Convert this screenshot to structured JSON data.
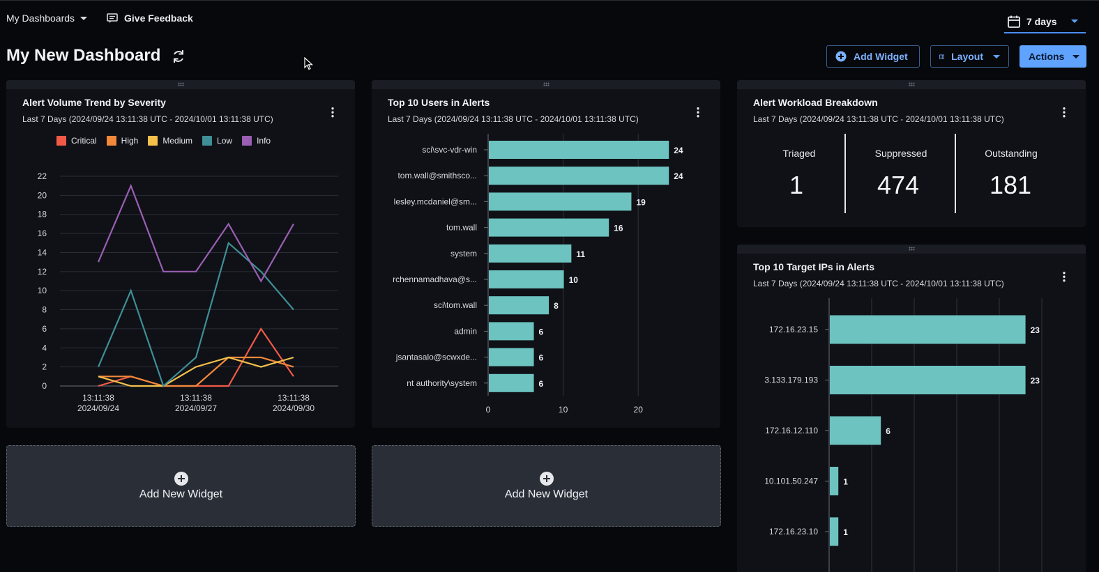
{
  "topbar": {
    "dashboards_label": "My Dashboards",
    "feedback_label": "Give Feedback",
    "date_range": "7 days"
  },
  "header": {
    "title": "My New Dashboard",
    "add_widget_label": "Add Widget",
    "layout_label": "Layout",
    "actions_label": "Actions"
  },
  "colors": {
    "accent": "#5fa3ff",
    "bar": "#6cc3bf",
    "critical": "#f25a47",
    "high": "#f2883a",
    "medium": "#f5c04a",
    "low": "#3f8f96",
    "info": "#9a5fb3"
  },
  "widgets": {
    "alert_volume": {
      "title": "Alert Volume Trend by Severity",
      "subtitle": "Last 7 Days (2024/09/24 13:11:38 UTC - 2024/10/01 13:11:38 UTC)"
    },
    "top_users": {
      "title": "Top 10 Users in Alerts",
      "subtitle": "Last 7 Days (2024/09/24 13:11:38 UTC - 2024/10/01 13:11:38 UTC)"
    },
    "workload": {
      "title": "Alert Workload Breakdown",
      "subtitle": "Last 7 Days (2024/09/24 13:11:38 UTC - 2024/10/01 13:11:38 UTC)",
      "triaged_label": "Triaged",
      "triaged_value": "1",
      "suppressed_label": "Suppressed",
      "suppressed_value": "474",
      "outstanding_label": "Outstanding",
      "outstanding_value": "181"
    },
    "top_ips": {
      "title": "Top 10 Target IPs in Alerts",
      "subtitle": "Last 7 Days (2024/09/24 13:11:38 UTC - 2024/10/01 13:11:38 UTC)"
    },
    "add_new_widget_label": "Add New Widget"
  },
  "chart_data": [
    {
      "type": "line",
      "title": "Alert Volume Trend by Severity",
      "x": [
        "2024/09/24",
        "2024/09/25",
        "2024/09/26",
        "2024/09/27",
        "2024/09/28",
        "2024/09/29",
        "2024/09/30"
      ],
      "x_ticks": [
        {
          "index": 0,
          "time": "13:11:38",
          "date": "2024/09/24"
        },
        {
          "index": 3,
          "time": "13:11:38",
          "date": "2024/09/27"
        },
        {
          "index": 6,
          "time": "13:11:38",
          "date": "2024/09/30"
        }
      ],
      "yticks": [
        0,
        2,
        4,
        6,
        8,
        10,
        12,
        14,
        16,
        18,
        20,
        22
      ],
      "ylim": [
        0,
        22
      ],
      "grid": true,
      "legend": "top",
      "series": [
        {
          "name": "Critical",
          "color": "#f25a47",
          "values": [
            0,
            1,
            0,
            0,
            0,
            6,
            1
          ]
        },
        {
          "name": "High",
          "color": "#f2883a",
          "values": [
            1,
            1,
            0,
            0,
            3,
            3,
            2
          ]
        },
        {
          "name": "Medium",
          "color": "#f5c04a",
          "values": [
            1,
            0,
            0,
            2,
            3,
            2,
            3
          ]
        },
        {
          "name": "Low",
          "color": "#3f8f96",
          "values": [
            2,
            10,
            0,
            3,
            15,
            12,
            8
          ]
        },
        {
          "name": "Info",
          "color": "#9a5fb3",
          "values": [
            13,
            21,
            12,
            12,
            17,
            11,
            17
          ]
        }
      ]
    },
    {
      "type": "bar",
      "orientation": "horizontal",
      "title": "Top 10 Users in Alerts",
      "categories": [
        "sci\\svc-vdr-win",
        "tom.wall@smithsco...",
        "lesley.mcdaniel@sm...",
        "tom.wall",
        "system",
        "rchennamadhava@s...",
        "sci\\tom.wall",
        "admin",
        "jsantasalo@scwxde...",
        "nt authority\\system"
      ],
      "values": [
        24,
        24,
        19,
        16,
        11,
        10,
        8,
        6,
        6,
        6
      ],
      "xticks": [
        0,
        10,
        20
      ],
      "xlim": [
        0,
        25
      ],
      "grid": true
    },
    {
      "type": "bar",
      "orientation": "horizontal",
      "title": "Top 10 Target IPs in Alerts",
      "categories": [
        "172.16.23.15",
        "3.133.179.193",
        "172.16.12.110",
        "10.101.50.247",
        "172.16.23.10"
      ],
      "values": [
        23,
        23,
        6,
        1,
        1
      ],
      "xlim": [
        0,
        25
      ],
      "grid": true
    }
  ]
}
